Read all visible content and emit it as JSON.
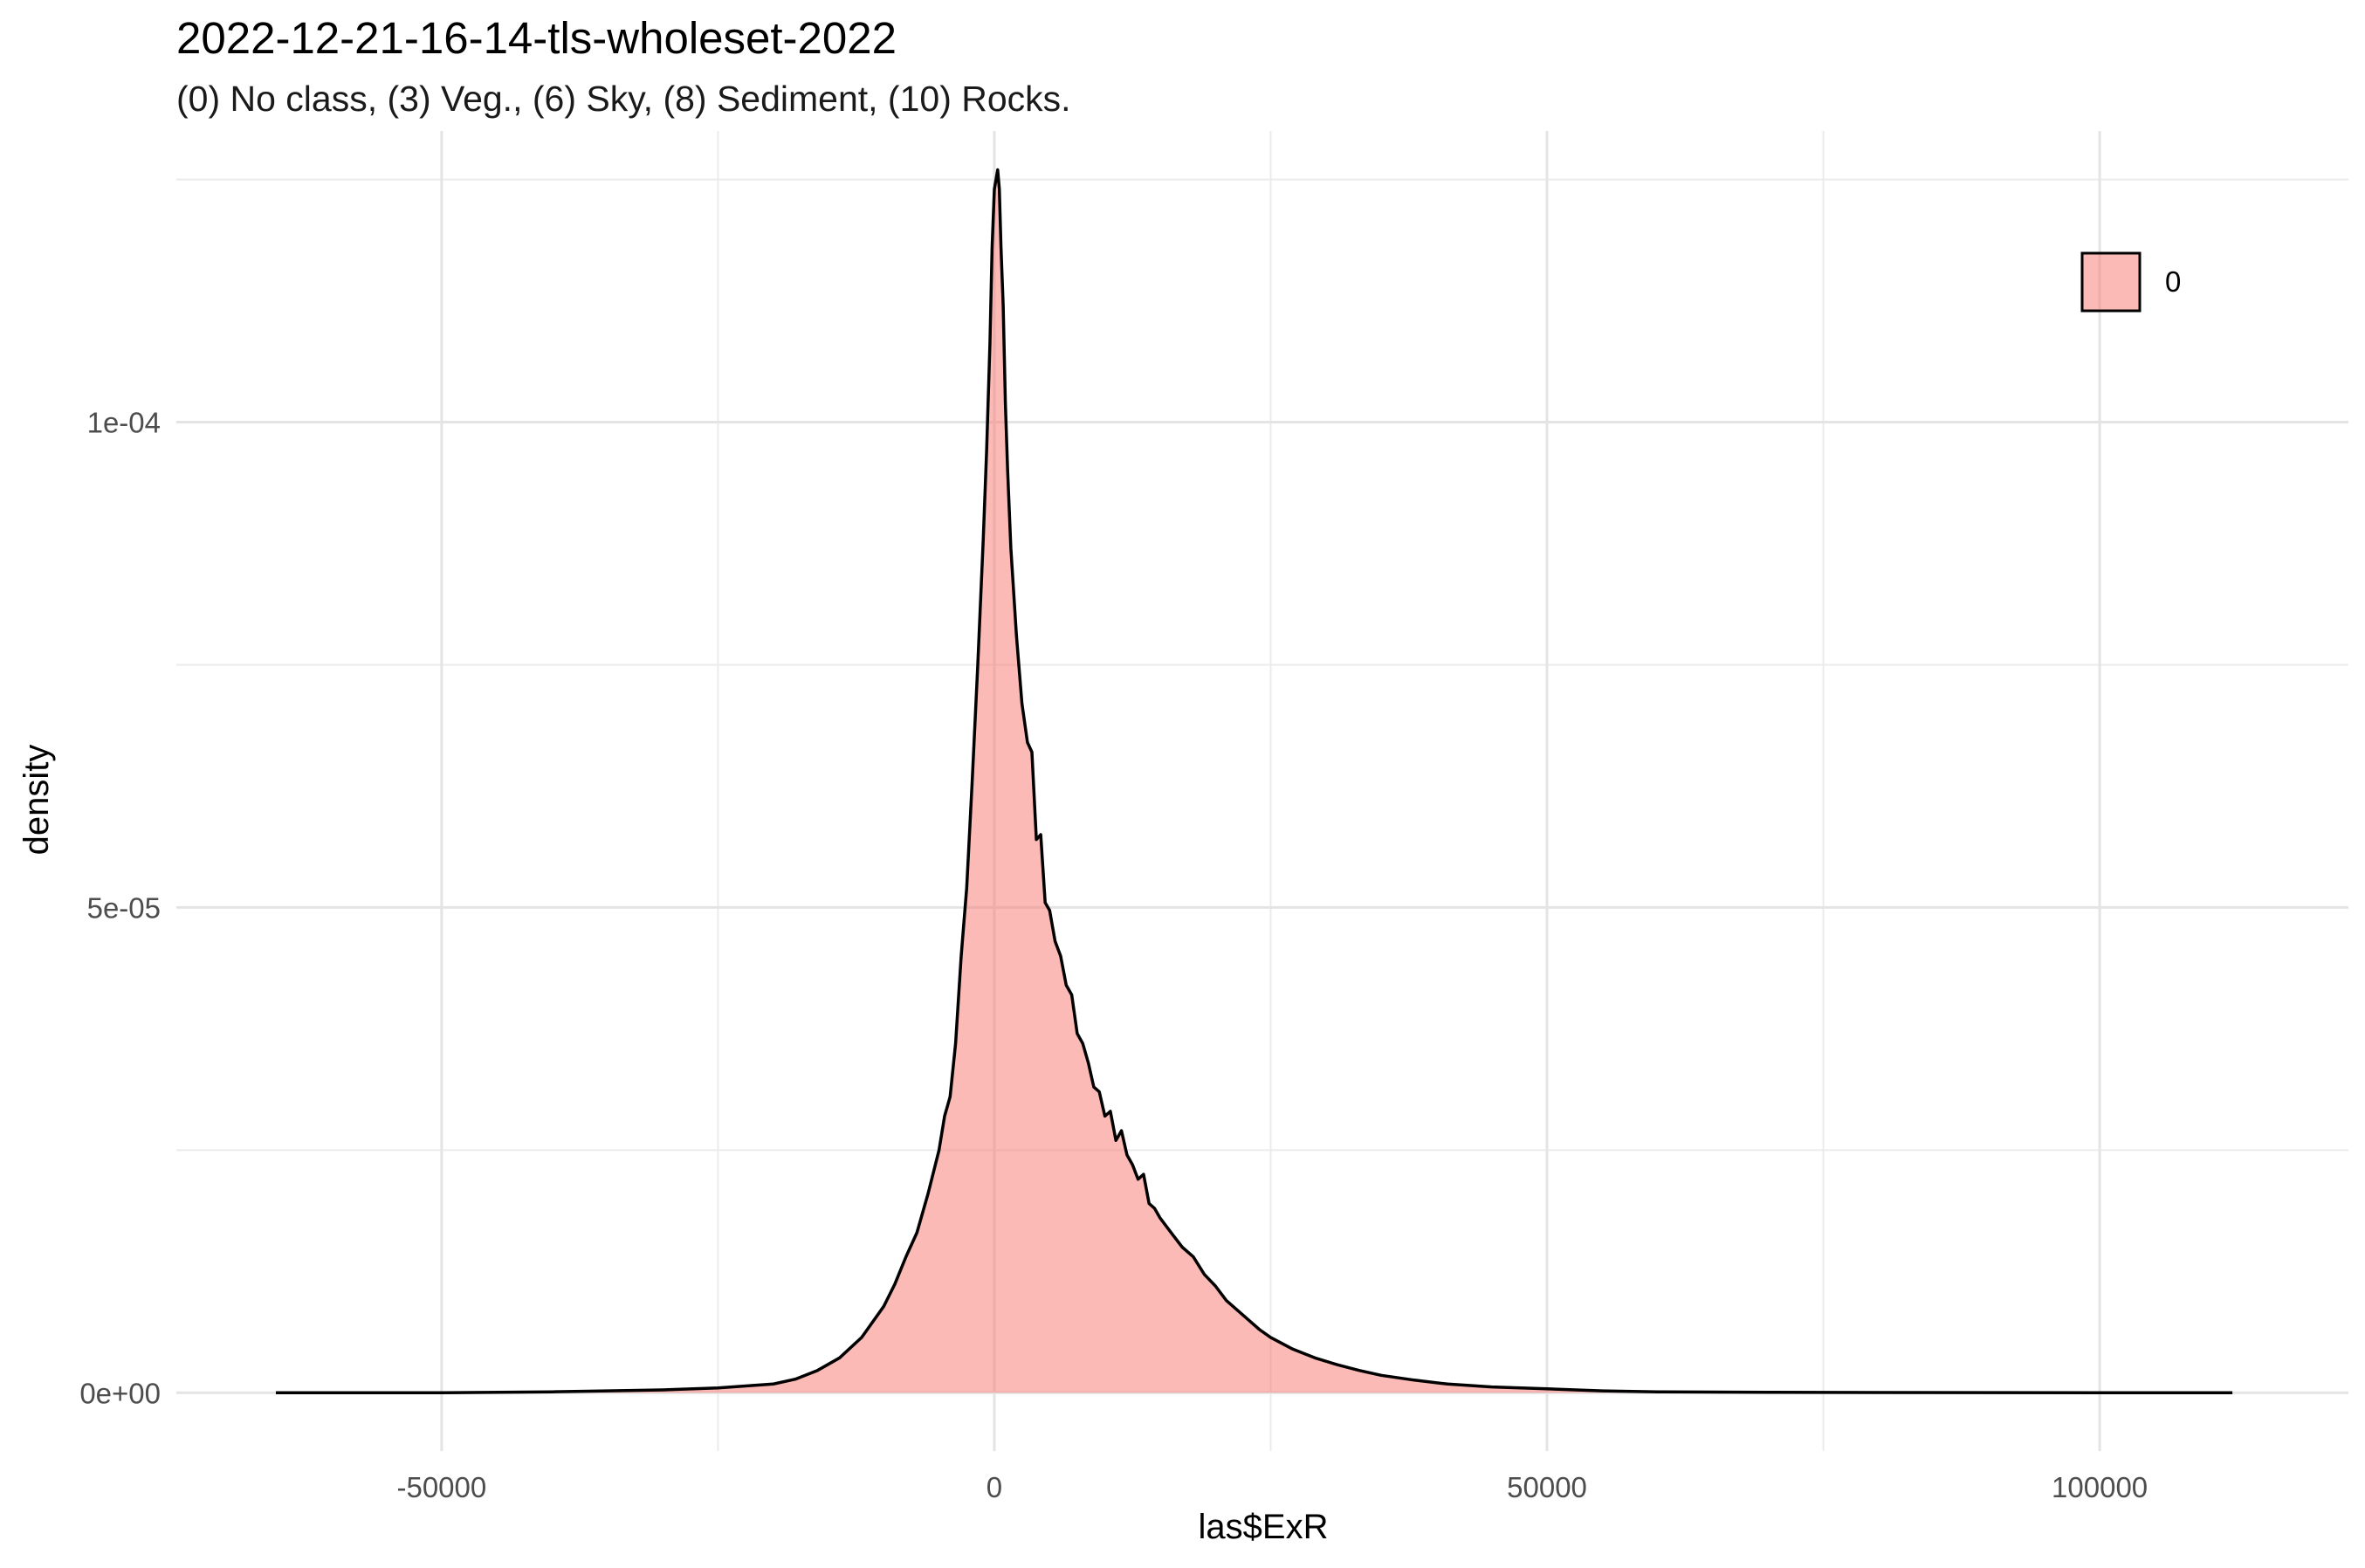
{
  "chart_data": {
    "type": "area",
    "title": "2022-12-21-16-14-tls-wholeset-2022",
    "subtitle": "(0) No class, (3) Veg., (6) Sky, (8) Sediment, (10) Rocks.",
    "xlabel": "las$ExR",
    "ylabel": "density",
    "xlim": [
      -74000,
      122500
    ],
    "ylim": [
      -6e-06,
      0.00013
    ],
    "x_ticks": [
      -50000,
      0,
      50000,
      100000
    ],
    "x_tick_labels": [
      "-50000",
      "0",
      "50000",
      "100000"
    ],
    "y_ticks": [
      0,
      5e-05,
      0.0001
    ],
    "y_tick_labels": [
      "0e+00",
      "5e-05",
      "1e-04"
    ],
    "grid": true,
    "legend": {
      "position": "top-right",
      "entries": [
        {
          "label": "0",
          "color": "#F8766D"
        }
      ]
    },
    "series": [
      {
        "name": "0",
        "fill": "#F8766D",
        "fill_alpha": 0.5,
        "stroke": "#000000",
        "x": [
          -65000,
          -50000,
          -40000,
          -35000,
          -30000,
          -25000,
          -20000,
          -18000,
          -16000,
          -14000,
          -12000,
          -10000,
          -9000,
          -8000,
          -7000,
          -6000,
          -5000,
          -4500,
          -4000,
          -3500,
          -3000,
          -2500,
          -2000,
          -1500,
          -1000,
          -700,
          -400,
          -200,
          0,
          150,
          300,
          450,
          600,
          800,
          1000,
          1200,
          1500,
          2000,
          2500,
          3000,
          3400,
          3800,
          4200,
          4600,
          5000,
          5500,
          6000,
          6500,
          7000,
          7500,
          8000,
          8500,
          9000,
          9500,
          10000,
          10500,
          11000,
          11500,
          12000,
          12500,
          13000,
          13500,
          14000,
          14500,
          15000,
          16000,
          17000,
          18000,
          19000,
          20000,
          21000,
          22000,
          23000,
          24000,
          25000,
          27000,
          29000,
          31000,
          33000,
          35000,
          38000,
          41000,
          45000,
          50000,
          55000,
          60000,
          70000,
          80000,
          90000,
          100000,
          112000
        ],
        "y": [
          0,
          0,
          1e-07,
          2e-07,
          3e-07,
          5e-07,
          9e-07,
          1.4e-06,
          2.3e-06,
          3.6e-06,
          5.7e-06,
          8.9e-06,
          1.12e-05,
          1.4e-05,
          1.65e-05,
          2.05e-05,
          2.5e-05,
          2.85e-05,
          3.05e-05,
          3.6e-05,
          4.5e-05,
          5.2e-05,
          6.3e-05,
          7.5e-05,
          8.8e-05,
          9.7e-05,
          0.000108,
          0.000118,
          0.000124,
          0.000125,
          0.000126,
          0.000124,
          0.000118,
          0.000112,
          0.000102,
          9.5e-05,
          8.7e-05,
          7.8e-05,
          7.1e-05,
          6.7e-05,
          6.6e-05,
          5.7e-05,
          5.75e-05,
          5.05e-05,
          4.97e-05,
          4.65e-05,
          4.5e-05,
          4.2e-05,
          4.1e-05,
          3.7e-05,
          3.6e-05,
          3.4e-05,
          3.15e-05,
          3.1e-05,
          2.85e-05,
          2.9e-05,
          2.6e-05,
          2.7e-05,
          2.45e-05,
          2.35e-05,
          2.2e-05,
          2.25e-05,
          1.95e-05,
          1.9e-05,
          1.8e-05,
          1.65e-05,
          1.5e-05,
          1.4e-05,
          1.22e-05,
          1.1e-05,
          9.5e-06,
          8.5e-06,
          7.5e-06,
          6.5e-06,
          5.7e-06,
          4.5e-06,
          3.6e-06,
          2.9e-06,
          2.3e-06,
          1.8e-06,
          1.3e-06,
          9e-07,
          6e-07,
          4e-07,
          2e-07,
          1e-07,
          5e-08,
          3e-08,
          2e-08,
          1e-08,
          0
        ]
      }
    ]
  }
}
